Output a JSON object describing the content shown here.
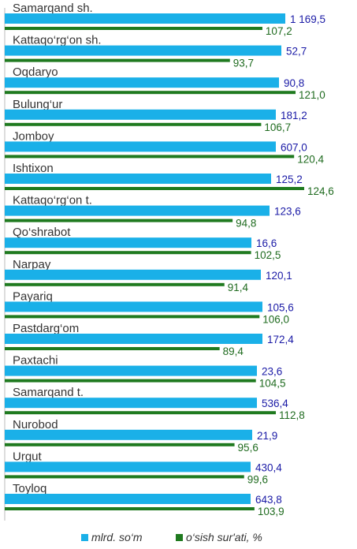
{
  "chart_data": {
    "type": "bar",
    "orientation": "horizontal",
    "categories": [
      "Samarqand sh.",
      "Kattaqo‘rg‘on sh.",
      "Oqdaryo",
      "Bulung‘ur",
      "Jomboy",
      "Ishtixon",
      "Kattaqo‘rg‘on t.",
      "Qo‘shrabot",
      "Narpay",
      "Payariq",
      "Pastdarg‘om",
      "Paxtachi",
      "Samarqand t.",
      "Nurobod",
      "Urgut",
      "Toyloq"
    ],
    "series": [
      {
        "name": "mlrd. so‘m",
        "color": "#1ab0e8",
        "label_color": "#1a1aa6",
        "values": [
          1169.5,
          52.7,
          90.8,
          181.2,
          607.0,
          125.2,
          123.6,
          16.6,
          120.1,
          105.6,
          172.4,
          23.6,
          536.4,
          21.9,
          430.4,
          643.8
        ],
        "labels": [
          "1 169,5",
          "52,7",
          "90,8",
          "181,2",
          "607,0",
          "125,2",
          "123,6",
          "16,6",
          "120,1",
          "105,6",
          "172,4",
          "23,6",
          "536,4",
          "21,9",
          "430,4",
          "643,8"
        ]
      },
      {
        "name": "o‘sish sur'ati, %",
        "color": "#1f7a1f",
        "label_color": "#1f6b1f",
        "values": [
          107.2,
          93.7,
          121.0,
          106.7,
          120.4,
          124.6,
          94.8,
          102.5,
          91.4,
          106.0,
          89.4,
          104.5,
          112.8,
          95.6,
          99.6,
          103.9
        ],
        "labels": [
          "107,2",
          "93,7",
          "121,0",
          "106,7",
          "120,4",
          "124,6",
          "94,8",
          "102,5",
          "91,4",
          "106,0",
          "89,4",
          "104,5",
          "112,8",
          "95,6",
          "99,6",
          "103,9"
        ]
      }
    ],
    "legend": {
      "position": "bottom"
    },
    "grid": false
  }
}
